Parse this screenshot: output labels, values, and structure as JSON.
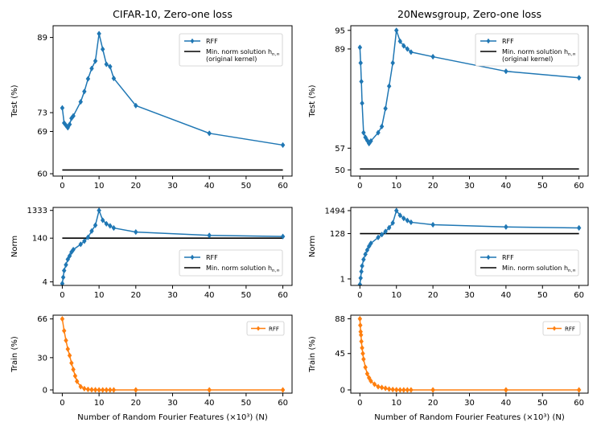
{
  "figure": {
    "xlabel": "Number of Random Fourier Features (×10³) (N)"
  },
  "colors": {
    "blue": "#1f77b4",
    "orange": "#ff7f0e",
    "black": "#000000"
  },
  "chart_data": [
    {
      "id": "cifar-test",
      "type": "line",
      "title": "CIFAR-10, Zero-one loss",
      "ylabel": "Test (%)",
      "xlabel": "",
      "xlim": [
        -2.5,
        62.5
      ],
      "ylim": [
        59.5,
        91.5
      ],
      "xticks": [
        0,
        10,
        20,
        30,
        40,
        50,
        60
      ],
      "xtick_labels": [
        "0",
        "10",
        "20",
        "30",
        "40",
        "50",
        "60"
      ],
      "yticks": [
        60,
        69,
        73,
        89
      ],
      "ytick_labels": [
        "60",
        "69",
        "73",
        "89"
      ],
      "series": [
        {
          "name": "RFF",
          "color": "#1f77b4",
          "marker": "diamond",
          "x": [
            0,
            0.5,
            1,
            1.5,
            2,
            2.5,
            3,
            5,
            6,
            7,
            8,
            9,
            10,
            11,
            12,
            13,
            14,
            20,
            40,
            60
          ],
          "y": [
            74,
            70.8,
            70.3,
            69.8,
            70.5,
            71.8,
            72.3,
            75.3,
            77.5,
            80.2,
            82.4,
            84,
            89.8,
            86.5,
            83.3,
            82.8,
            80.3,
            74.5,
            68.6,
            66.1
          ]
        }
      ],
      "reference": {
        "name": "Min. norm solution h_{n,∞}",
        "value": 60.8,
        "color": "#000000"
      },
      "legend": {
        "position": "top-right",
        "entries": [
          "RFF",
          "Min. norm solution h_{n,∞}"
        ],
        "ref_label": "Min. norm solution h",
        "ref_sub": "n,∞",
        "ref_extra": "(original kernel)"
      }
    },
    {
      "id": "news-test",
      "type": "line",
      "title": "20Newsgroup, Zero-one loss",
      "ylabel": "Test (%)",
      "xlabel": "",
      "xlim": [
        -2.5,
        62.5
      ],
      "ylim": [
        48,
        96.5
      ],
      "xticks": [
        0,
        10,
        20,
        30,
        40,
        50,
        60
      ],
      "xtick_labels": [
        "0",
        "10",
        "20",
        "30",
        "40",
        "50",
        "60"
      ],
      "yticks": [
        50,
        57,
        89,
        95
      ],
      "ytick_labels": [
        "50",
        "57",
        "89",
        "95"
      ],
      "series": [
        {
          "name": "RFF",
          "color": "#1f77b4",
          "marker": "diamond",
          "x": [
            0,
            0.2,
            0.4,
            0.6,
            1,
            1.5,
            2,
            2.5,
            3,
            5,
            6,
            7,
            8,
            9,
            10,
            11,
            12,
            13,
            14,
            20,
            40,
            60
          ],
          "y": [
            89.5,
            84.5,
            78.5,
            71.5,
            62,
            60.5,
            59.5,
            58.5,
            59.3,
            62,
            64,
            69.8,
            77,
            84.5,
            95,
            91.5,
            90,
            89,
            88,
            86.5,
            81.8,
            79.7
          ]
        }
      ],
      "reference": {
        "name": "Min. norm solution h_{n,∞}",
        "value": 50.3,
        "color": "#000000"
      },
      "legend": {
        "position": "top-right",
        "entries": [
          "RFF",
          "Min. norm solution h_{n,∞}"
        ],
        "ref_label": "Min. norm solution h",
        "ref_sub": "n,∞",
        "ref_extra": "(original kernel)"
      }
    },
    {
      "id": "cifar-norm",
      "type": "line",
      "scale": "log",
      "title": "",
      "ylabel": "Norm",
      "xlabel": "",
      "xlim": [
        -2.5,
        62.5
      ],
      "ylim": [
        3,
        1700
      ],
      "xticks": [
        0,
        10,
        20,
        30,
        40,
        50,
        60
      ],
      "xtick_labels": [
        "0",
        "10",
        "20",
        "30",
        "40",
        "50",
        "60"
      ],
      "yticks": [
        4,
        140,
        1333
      ],
      "ytick_labels": [
        "4",
        "140",
        "1333"
      ],
      "series": [
        {
          "name": "RFF",
          "color": "#1f77b4",
          "marker": "diamond",
          "x": [
            0,
            0.25,
            0.5,
            1,
            1.5,
            2,
            2.5,
            3,
            5,
            6,
            7,
            8,
            9,
            10,
            11,
            12,
            13,
            14,
            20,
            40,
            60
          ],
          "y": [
            3.5,
            5.8,
            10,
            16,
            25,
            33,
            45,
            55,
            85,
            110,
            150,
            250,
            400,
            1333,
            600,
            450,
            380,
            320,
            230,
            175,
            160
          ]
        }
      ],
      "reference": {
        "name": "Min. norm solution h_{n,∞}",
        "value": 140,
        "color": "#000000"
      },
      "legend": {
        "position": "lower-right",
        "entries": [
          "RFF",
          "Min. norm solution h_{n,∞}"
        ],
        "ref_label": "Min. norm solution h",
        "ref_sub": "n,∞"
      }
    },
    {
      "id": "news-norm",
      "type": "line",
      "scale": "log",
      "title": "",
      "ylabel": "Norm",
      "xlabel": "",
      "xlim": [
        -2.5,
        62.5
      ],
      "ylim": [
        0.5,
        2100
      ],
      "xticks": [
        0,
        10,
        20,
        30,
        40,
        50,
        60
      ],
      "xtick_labels": [
        "0",
        "10",
        "20",
        "30",
        "40",
        "50",
        "60"
      ],
      "yticks": [
        1,
        128,
        1494
      ],
      "ytick_labels": [
        "1",
        "128",
        "1494"
      ],
      "series": [
        {
          "name": "RFF",
          "color": "#1f77b4",
          "marker": "diamond",
          "x": [
            0,
            0.2,
            0.4,
            0.6,
            1,
            1.5,
            2,
            2.5,
            3,
            5,
            6,
            7,
            8,
            9,
            10,
            11,
            12,
            13,
            14,
            20,
            40,
            60
          ],
          "y": [
            0.55,
            1.1,
            2.2,
            4,
            8,
            14,
            22,
            33,
            45,
            85,
            115,
            160,
            240,
            400,
            1494,
            900,
            650,
            520,
            430,
            330,
            260,
            235
          ]
        }
      ],
      "reference": {
        "name": "Min. norm solution h_{n,∞}",
        "value": 128,
        "color": "#000000"
      },
      "legend": {
        "position": "lower-right",
        "entries": [
          "RFF",
          "Min. norm solution h_{n,∞}"
        ],
        "ref_label": "Min. norm solution h",
        "ref_sub": "n,∞"
      }
    },
    {
      "id": "cifar-train",
      "type": "line",
      "title": "",
      "ylabel": "Train (%)",
      "xlabel": "Number of Random Fourier Features (×10³) (N)",
      "xlim": [
        -2.5,
        62.5
      ],
      "ylim": [
        -3,
        69.5
      ],
      "xticks": [
        0,
        10,
        20,
        30,
        40,
        50,
        60
      ],
      "xtick_labels": [
        "0",
        "10",
        "20",
        "30",
        "40",
        "50",
        "60"
      ],
      "yticks": [
        0,
        30,
        66
      ],
      "ytick_labels": [
        "0",
        "30",
        "66"
      ],
      "series": [
        {
          "name": "RFF",
          "color": "#ff7f0e",
          "marker": "diamond",
          "x": [
            0,
            0.5,
            1,
            1.5,
            2,
            2.5,
            3,
            3.5,
            4,
            5,
            6,
            7,
            8,
            9,
            10,
            11,
            12,
            13,
            14,
            20,
            40,
            60
          ],
          "y": [
            66,
            55,
            46,
            38,
            32,
            25,
            19,
            13,
            8,
            3,
            1.2,
            0.5,
            0.2,
            0.1,
            0,
            0,
            0,
            0,
            0,
            0,
            0,
            0
          ]
        }
      ],
      "legend": {
        "position": "top-right",
        "entries": [
          "RFF"
        ]
      }
    },
    {
      "id": "news-train",
      "type": "line",
      "title": "",
      "ylabel": "Train (%)",
      "xlabel": "Number of Random Fourier Features (×10³) (N)",
      "xlim": [
        -2.5,
        62.5
      ],
      "ylim": [
        -4,
        92.5
      ],
      "xticks": [
        0,
        10,
        20,
        30,
        40,
        50,
        60
      ],
      "xtick_labels": [
        "0",
        "10",
        "20",
        "30",
        "40",
        "50",
        "60"
      ],
      "yticks": [
        0,
        45,
        88
      ],
      "ytick_labels": [
        "0",
        "45",
        "88"
      ],
      "series": [
        {
          "name": "RFF",
          "color": "#ff7f0e",
          "marker": "diamond",
          "x": [
            0,
            0.1,
            0.2,
            0.3,
            0.4,
            0.6,
            0.8,
            1,
            1.5,
            2,
            2.5,
            3,
            4,
            5,
            6,
            7,
            8,
            9,
            10,
            11,
            12,
            13,
            14,
            20,
            40,
            60
          ],
          "y": [
            88,
            80,
            72,
            68,
            60,
            52,
            45,
            38,
            28,
            20,
            15,
            11,
            7,
            4,
            3,
            2,
            1,
            0.5,
            0.2,
            0,
            0,
            0,
            0,
            0,
            0,
            0
          ]
        }
      ],
      "legend": {
        "position": "top-right",
        "entries": [
          "RFF"
        ]
      }
    }
  ]
}
